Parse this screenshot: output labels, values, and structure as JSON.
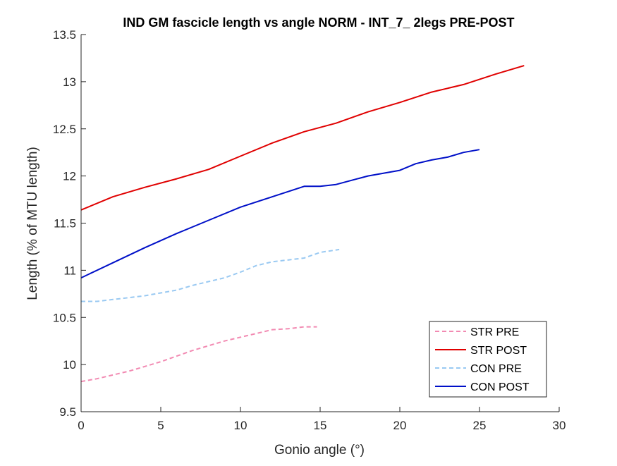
{
  "chart_data": {
    "type": "line",
    "title": "IND GM fascicle length vs angle NORM - INT_7_ 2legs PRE-POST",
    "xlabel": "Gonio angle (°)",
    "ylabel": "Length (% of MTU length)",
    "xlim": [
      0,
      30
    ],
    "ylim": [
      9.5,
      13.5
    ],
    "xticks": [
      0,
      5,
      10,
      15,
      20,
      25,
      30
    ],
    "xtick_labels": [
      "0",
      "5",
      "10",
      "15",
      "20",
      "25",
      "30"
    ],
    "yticks": [
      9.5,
      10,
      10.5,
      11,
      11.5,
      12,
      12.5,
      13,
      13.5
    ],
    "ytick_labels": [
      "9.5",
      "10",
      "10.5",
      "11",
      "11.5",
      "12",
      "12.5",
      "13",
      "13.5"
    ],
    "grid": false,
    "legend_position": "bottom-right",
    "series": [
      {
        "name": "STR PRE",
        "color": "#f28ab2",
        "dash": "dashed",
        "x": [
          0,
          1,
          2,
          3,
          4,
          5,
          6,
          7,
          8,
          9,
          10,
          11,
          12,
          13,
          14,
          14.8
        ],
        "y": [
          9.82,
          9.85,
          9.89,
          9.93,
          9.98,
          10.03,
          10.09,
          10.15,
          10.2,
          10.25,
          10.29,
          10.33,
          10.37,
          10.38,
          10.4,
          10.4
        ]
      },
      {
        "name": "STR POST",
        "color": "#e00000",
        "dash": "solid",
        "x": [
          0,
          2,
          4,
          6,
          8,
          10,
          12,
          14,
          16,
          18,
          20,
          22,
          24,
          26,
          27.8
        ],
        "y": [
          11.64,
          11.78,
          11.88,
          11.97,
          12.07,
          12.21,
          12.35,
          12.47,
          12.56,
          12.68,
          12.78,
          12.89,
          12.97,
          13.08,
          13.17
        ]
      },
      {
        "name": "CON PRE",
        "color": "#99c9f2",
        "dash": "dashed",
        "x": [
          0,
          1,
          2,
          3,
          4,
          5,
          6,
          7,
          8,
          9,
          10,
          11,
          12,
          13,
          14,
          15,
          16.2
        ],
        "y": [
          10.67,
          10.67,
          10.69,
          10.71,
          10.73,
          10.76,
          10.79,
          10.84,
          10.88,
          10.92,
          10.98,
          11.05,
          11.09,
          11.11,
          11.13,
          11.19,
          11.22
        ]
      },
      {
        "name": "CON POST",
        "color": "#0010c8",
        "dash": "solid",
        "x": [
          0,
          2,
          4,
          6,
          8,
          10,
          12,
          14,
          15,
          16,
          18,
          20,
          21,
          22,
          23,
          24,
          25
        ],
        "y": [
          10.92,
          11.08,
          11.24,
          11.39,
          11.53,
          11.67,
          11.78,
          11.89,
          11.89,
          11.91,
          12.0,
          12.06,
          12.13,
          12.17,
          12.2,
          12.25,
          12.28
        ]
      }
    ]
  }
}
